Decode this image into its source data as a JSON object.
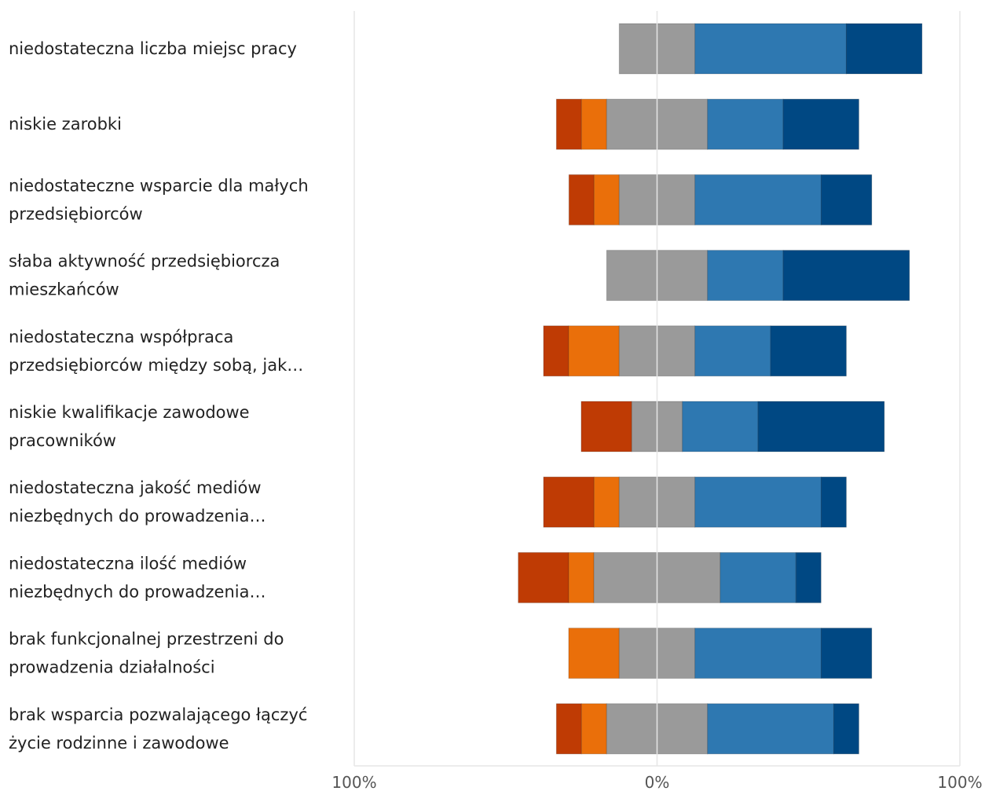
{
  "chart_data": {
    "type": "bar",
    "orientation": "horizontal",
    "stacked": "diverging",
    "categories": [
      "niedostateczna liczba miejsc pracy",
      "niskie zarobki",
      "niedostateczne wsparcie dla małych przedsiębiorców",
      "słaba aktywność przedsiębiorcza mieszkańców",
      "niedostateczna współpraca przedsiębiorców między sobą, jak…",
      "niskie kwalifikacje zawodowe pracowników",
      "niedostateczna jakość mediów niezbędnych do prowadzenia…",
      "niedostateczna ilość mediów niezbędnych do prowadzenia…",
      "brak funkcjonalnej przestrzeni do prowadzenia działalności",
      "brak wsparcia pozwalającego łączyć życie rodzinne i zawodowe"
    ],
    "category_lines": [
      [
        "niedostateczna liczba miejsc pracy"
      ],
      [
        "niskie zarobki"
      ],
      [
        "niedostateczne wsparcie dla małych",
        "przedsiębiorców"
      ],
      [
        "słaba aktywność przedsiębiorcza",
        "mieszkańców"
      ],
      [
        "niedostateczna współpraca",
        "przedsiębiorców między sobą, jak…"
      ],
      [
        "niskie kwalifikacje zawodowe",
        "pracowników"
      ],
      [
        "niedostateczna jakość mediów",
        "niezbędnych do prowadzenia…"
      ],
      [
        "niedostateczna ilość mediów",
        "niezbędnych do prowadzenia…"
      ],
      [
        "brak funkcjonalnej przestrzeni do",
        "prowadzenia działalności"
      ],
      [
        "brak wsparcia pozwalającego łączyć",
        "życie rodzinne i zawodowe"
      ]
    ],
    "series": [
      {
        "color": "#bf3b04",
        "side": "negative",
        "values": [
          0,
          8.3,
          8.3,
          0,
          8.3,
          16.7,
          16.7,
          16.7,
          0,
          8.3
        ]
      },
      {
        "color": "#ea6f0a",
        "side": "negative",
        "values": [
          0,
          8.3,
          8.3,
          0,
          16.7,
          0,
          8.3,
          8.3,
          16.7,
          8.3
        ]
      },
      {
        "color": "#9a9a9a",
        "side": "neutral",
        "values": [
          25,
          33.3,
          25,
          33.3,
          25,
          16.7,
          25,
          41.7,
          25,
          33.3
        ]
      },
      {
        "color": "#2e78b1",
        "side": "positive",
        "values": [
          50,
          25,
          41.7,
          25,
          25,
          25,
          41.7,
          25,
          41.7,
          41.7
        ]
      },
      {
        "color": "#004883",
        "side": "positive",
        "values": [
          25,
          25,
          16.7,
          41.7,
          25,
          41.7,
          8.3,
          8.3,
          16.7,
          8.3
        ]
      }
    ],
    "xlim": [
      -100,
      100
    ],
    "x_ticks": [
      {
        "value": -100,
        "label": "100%"
      },
      {
        "value": 0,
        "label": "0%"
      },
      {
        "value": 100,
        "label": "100%"
      }
    ],
    "grid": true,
    "legend": "none",
    "title": "",
    "xlabel": "",
    "ylabel": ""
  }
}
